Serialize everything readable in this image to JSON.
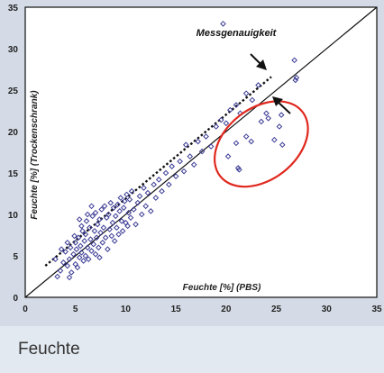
{
  "caption": "Feuchte",
  "chart_data": {
    "type": "scatter",
    "title": "",
    "xlabel": "Feuchte [%] (PBS)",
    "ylabel": "Feuchte [%] (Trockenschrank)",
    "xlim": [
      0,
      35
    ],
    "ylim": [
      0,
      35
    ],
    "x_ticks": [
      "0",
      "5",
      "10",
      "15",
      "20",
      "25",
      "30",
      "35"
    ],
    "y_ticks": [
      "0",
      "5",
      "10",
      "15",
      "20",
      "25",
      "30",
      "35"
    ],
    "grid": false,
    "colors": {
      "points": "#3c3c96",
      "ellipse": "#e0281e",
      "line": "#111111"
    },
    "annotations": [
      {
        "text": "Messgenauigkeit",
        "x": 21,
        "y": 31.5
      }
    ],
    "reference_line": {
      "x": [
        0,
        35
      ],
      "y": [
        0,
        35
      ]
    },
    "tolerance_line": {
      "x": [
        2,
        24.5
      ],
      "y": [
        3.8,
        26.6
      ]
    },
    "highlight_ellipse": {
      "cx": 23.5,
      "cy": 18.5,
      "rx": 5.2,
      "ry": 4.3,
      "angle": -38
    },
    "series": [
      {
        "points": [
          [
            3.2,
            2.5
          ],
          [
            3.5,
            3.2
          ],
          [
            3.8,
            4.2
          ],
          [
            4.0,
            5.5
          ],
          [
            4.2,
            3.8
          ],
          [
            4.4,
            4.6
          ],
          [
            4.5,
            6.0
          ],
          [
            4.6,
            3.0
          ],
          [
            4.8,
            5.2
          ],
          [
            5.0,
            4.0
          ],
          [
            5.0,
            6.6
          ],
          [
            5.1,
            5.8
          ],
          [
            5.2,
            3.6
          ],
          [
            5.3,
            7.2
          ],
          [
            5.4,
            4.8
          ],
          [
            5.5,
            6.2
          ],
          [
            5.6,
            5.4
          ],
          [
            5.7,
            8.0
          ],
          [
            5.8,
            4.4
          ],
          [
            5.9,
            6.8
          ],
          [
            6.0,
            5.0
          ],
          [
            6.0,
            7.6
          ],
          [
            6.1,
            9.2
          ],
          [
            6.2,
            6.0
          ],
          [
            6.3,
            4.6
          ],
          [
            6.4,
            8.4
          ],
          [
            6.5,
            7.0
          ],
          [
            6.6,
            5.6
          ],
          [
            6.7,
            9.8
          ],
          [
            6.8,
            6.4
          ],
          [
            6.9,
            8.0
          ],
          [
            7.0,
            5.2
          ],
          [
            7.0,
            10.2
          ],
          [
            7.1,
            7.2
          ],
          [
            7.2,
            8.8
          ],
          [
            7.3,
            6.0
          ],
          [
            7.4,
            9.4
          ],
          [
            7.5,
            7.8
          ],
          [
            7.6,
            10.6
          ],
          [
            7.7,
            6.6
          ],
          [
            7.8,
            8.4
          ],
          [
            7.9,
            11.0
          ],
          [
            8.0,
            7.2
          ],
          [
            8.1,
            9.6
          ],
          [
            8.2,
            5.8
          ],
          [
            8.3,
            10.0
          ],
          [
            8.4,
            8.2
          ],
          [
            8.5,
            11.4
          ],
          [
            8.6,
            7.4
          ],
          [
            8.7,
            9.0
          ],
          [
            8.8,
            10.8
          ],
          [
            8.9,
            6.8
          ],
          [
            9.0,
            9.8
          ],
          [
            9.1,
            8.4
          ],
          [
            9.2,
            11.2
          ],
          [
            9.3,
            7.6
          ],
          [
            9.4,
            10.4
          ],
          [
            9.5,
            12.0
          ],
          [
            9.6,
            9.2
          ],
          [
            9.7,
            8.0
          ],
          [
            9.8,
            10.8
          ],
          [
            9.9,
            11.6
          ],
          [
            10.0,
            9.0
          ],
          [
            10.1,
            12.4
          ],
          [
            10.2,
            8.6
          ],
          [
            10.3,
            10.2
          ],
          [
            10.4,
            11.8
          ],
          [
            10.5,
            9.6
          ],
          [
            10.6,
            12.8
          ],
          [
            10.8,
            10.6
          ],
          [
            11.0,
            8.8
          ],
          [
            11.2,
            11.4
          ],
          [
            11.4,
            12.2
          ],
          [
            11.6,
            10.0
          ],
          [
            11.8,
            13.2
          ],
          [
            12.0,
            11.0
          ],
          [
            12.2,
            12.6
          ],
          [
            12.5,
            10.4
          ],
          [
            12.8,
            13.6
          ],
          [
            13.0,
            12.0
          ],
          [
            13.3,
            14.2
          ],
          [
            13.6,
            12.8
          ],
          [
            14.0,
            15.0
          ],
          [
            14.3,
            13.6
          ],
          [
            14.6,
            15.8
          ],
          [
            15.0,
            14.6
          ],
          [
            15.4,
            16.4
          ],
          [
            15.8,
            15.2
          ],
          [
            16.0,
            18.4
          ],
          [
            16.4,
            17.0
          ],
          [
            16.8,
            16.0
          ],
          [
            17.2,
            18.8
          ],
          [
            17.6,
            17.6
          ],
          [
            18.0,
            19.4
          ],
          [
            18.5,
            18.2
          ],
          [
            19.0,
            20.6
          ],
          [
            19.5,
            21.4
          ],
          [
            20.0,
            21.0
          ],
          [
            20.4,
            22.6
          ],
          [
            21.0,
            23.2
          ],
          [
            21.4,
            22.2
          ],
          [
            22.0,
            24.6
          ],
          [
            22.6,
            23.8
          ],
          [
            23.2,
            25.6
          ],
          [
            19.7,
            33.0
          ],
          [
            20.2,
            17.0
          ],
          [
            21.0,
            18.6
          ],
          [
            21.2,
            15.6
          ],
          [
            21.3,
            15.4
          ],
          [
            22.0,
            19.4
          ],
          [
            22.5,
            18.8
          ],
          [
            23.5,
            21.2
          ],
          [
            24.0,
            22.2
          ],
          [
            24.2,
            21.6
          ],
          [
            24.8,
            19.0
          ],
          [
            25.3,
            20.6
          ],
          [
            25.5,
            22.0
          ],
          [
            25.6,
            18.4
          ],
          [
            26.8,
            28.6
          ],
          [
            26.9,
            26.2
          ],
          [
            27.0,
            26.5
          ],
          [
            3.0,
            4.6
          ],
          [
            3.6,
            5.8
          ],
          [
            4.2,
            6.6
          ],
          [
            4.9,
            7.4
          ],
          [
            5.6,
            8.6
          ],
          [
            6.2,
            10.0
          ],
          [
            5.4,
            9.4
          ],
          [
            6.6,
            11.0
          ],
          [
            4.4,
            2.4
          ],
          [
            7.4,
            4.8
          ]
        ]
      }
    ]
  }
}
